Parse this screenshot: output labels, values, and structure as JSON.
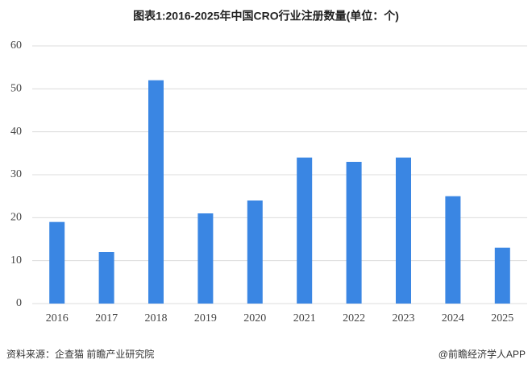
{
  "chart_data": {
    "type": "bar",
    "title": "图表1:2016-2025年中国CRO行业注册数量(单位：个)",
    "categories": [
      "2016",
      "2017",
      "2018",
      "2019",
      "2020",
      "2021",
      "2022",
      "2023",
      "2024",
      "2025"
    ],
    "values": [
      19,
      12,
      52,
      21,
      24,
      34,
      33,
      34,
      25,
      13
    ],
    "color": "#3a86e3",
    "ylim": [
      0,
      60
    ],
    "yticks": [
      0,
      10,
      20,
      30,
      40,
      50,
      60
    ],
    "grid": true,
    "source": "资料来源：企查猫 前瞻产业研究院",
    "credit": "@前瞻经济学人APP"
  }
}
